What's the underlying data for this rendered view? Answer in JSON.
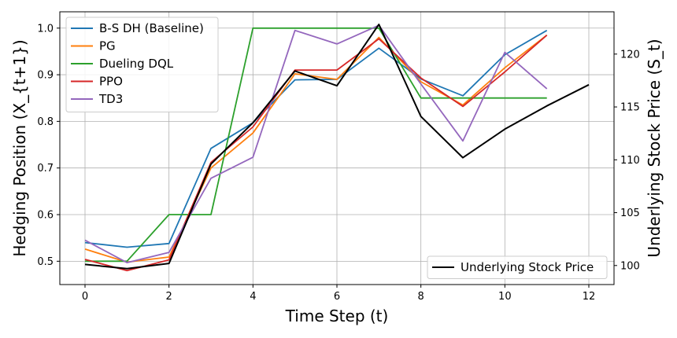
{
  "chart_data": {
    "type": "line",
    "title": "",
    "xlabel": "Time Step (t)",
    "ylabel_left": "Hedging Position (X_{t+1})",
    "ylabel_right": "Underlying Stock Price (S_t)",
    "grid": true,
    "xlim": [
      -0.6,
      12.6
    ],
    "ylim_left": [
      0.45,
      1.035
    ],
    "ylim_right": [
      98.2,
      124.0
    ],
    "x_ticks": [
      0,
      2,
      4,
      6,
      8,
      10,
      12
    ],
    "y_ticks_left": [
      0.5,
      0.6,
      0.7,
      0.8,
      0.9,
      1.0
    ],
    "y_ticks_right": [
      100,
      105,
      110,
      115,
      120
    ],
    "legend_left_position": "top-left",
    "legend_right_position": "bottom-right",
    "series": [
      {
        "name": "B-S DH (Baseline)",
        "axis": "left",
        "color": "#1f77b4",
        "x": [
          0,
          1,
          2,
          3,
          4,
          5,
          6,
          7,
          8,
          9,
          10,
          11
        ],
        "y": [
          0.54,
          0.53,
          0.538,
          0.742,
          0.797,
          0.889,
          0.89,
          0.957,
          0.891,
          0.855,
          0.943,
          0.995
        ]
      },
      {
        "name": "PG",
        "axis": "left",
        "color": "#ff7f0e",
        "x": [
          0,
          1,
          2,
          3,
          4,
          5,
          6,
          7,
          8,
          9,
          10,
          11
        ],
        "y": [
          0.526,
          0.498,
          0.509,
          0.7,
          0.775,
          0.902,
          0.89,
          0.98,
          0.885,
          0.835,
          0.915,
          0.985
        ]
      },
      {
        "name": "Dueling DQL",
        "axis": "left",
        "color": "#2ca02c",
        "x": [
          0,
          1,
          2,
          3,
          4,
          5,
          6,
          7,
          8,
          9,
          10,
          11
        ],
        "y": [
          0.5,
          0.5,
          0.6,
          0.6,
          1.0,
          1.0,
          1.0,
          1.0,
          0.85,
          0.85,
          0.85,
          0.85
        ]
      },
      {
        "name": "PPO",
        "axis": "left",
        "color": "#d62728",
        "x": [
          0,
          1,
          2,
          3,
          4,
          5,
          6,
          7,
          8,
          9,
          10,
          11
        ],
        "y": [
          0.504,
          0.48,
          0.503,
          0.712,
          0.788,
          0.91,
          0.91,
          0.977,
          0.893,
          0.832,
          0.906,
          0.985
        ]
      },
      {
        "name": "TD3",
        "axis": "left",
        "color": "#9467bd",
        "x": [
          0,
          1,
          2,
          3,
          4,
          5,
          6,
          7,
          8,
          9,
          10,
          11
        ],
        "y": [
          0.545,
          0.497,
          0.519,
          0.678,
          0.723,
          0.995,
          0.966,
          1.006,
          0.88,
          0.758,
          0.948,
          0.87
        ]
      },
      {
        "name": "Underlying Stock Price",
        "axis": "right",
        "color": "#000000",
        "x": [
          0,
          1,
          2,
          3,
          4,
          5,
          6,
          7,
          8,
          9,
          10,
          11,
          12
        ],
        "y": [
          100.1,
          99.7,
          100.2,
          109.6,
          113.5,
          118.4,
          117.0,
          122.8,
          114.1,
          110.2,
          112.9,
          115.1,
          117.1
        ]
      }
    ]
  }
}
